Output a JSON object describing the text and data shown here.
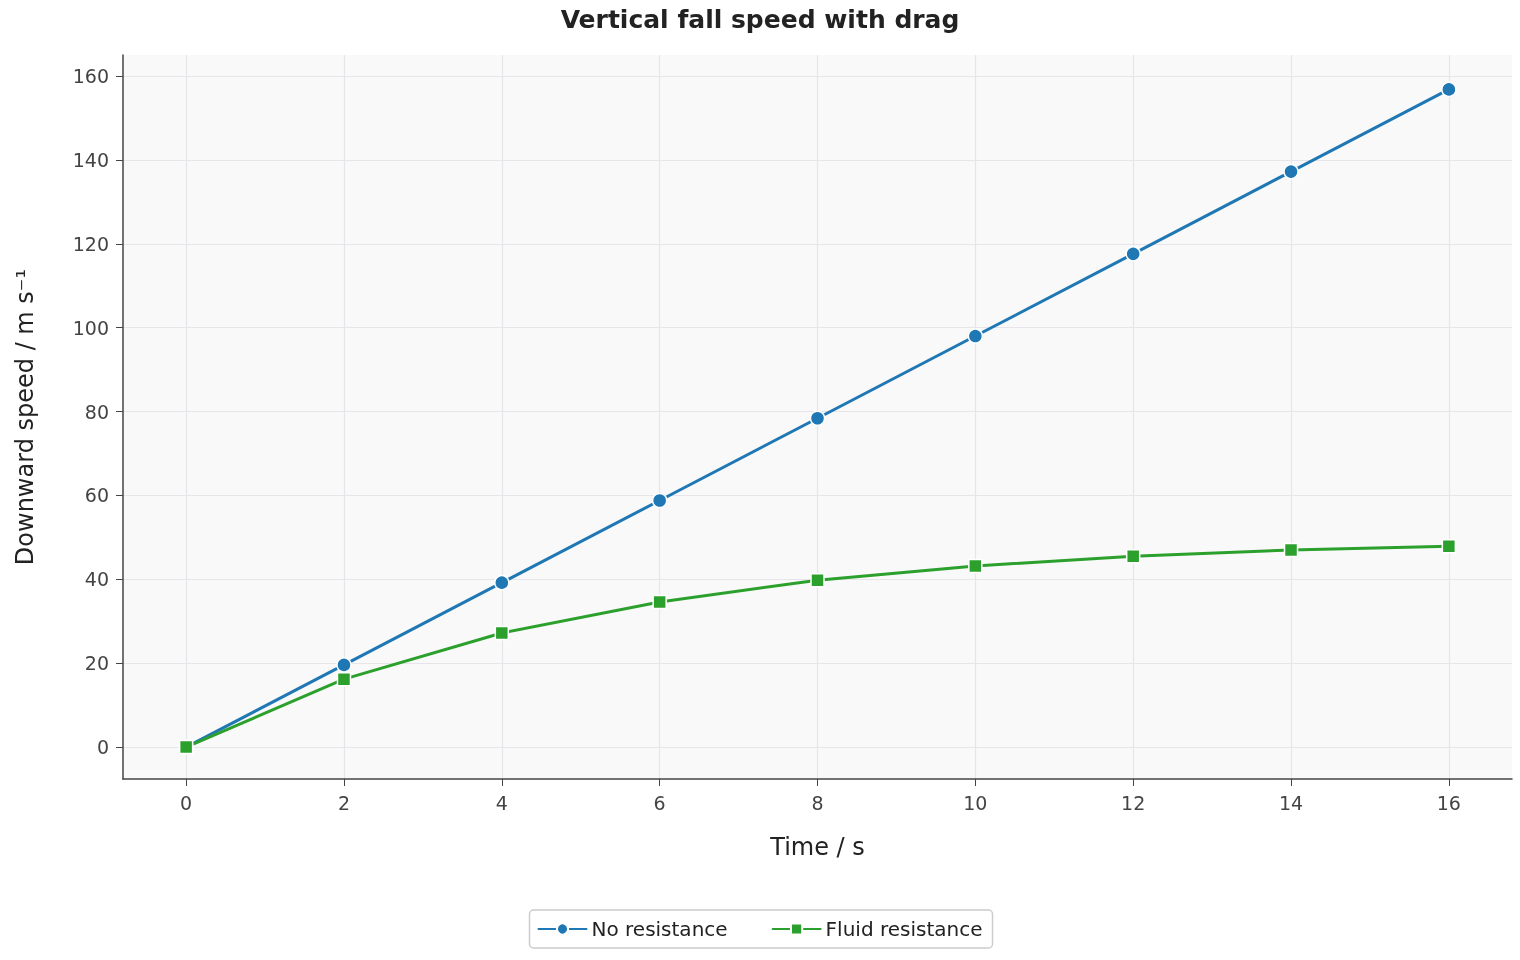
{
  "chart_data": {
    "type": "line",
    "title": "Vertical fall speed with drag",
    "xlabel": "Time / s",
    "ylabel": "Downward speed / m s⁻¹",
    "x": [
      0,
      2,
      4,
      6,
      8,
      10,
      12,
      14,
      16
    ],
    "series": [
      {
        "name": "No resistance",
        "color": "#1f77b4",
        "marker": "circle",
        "values": [
          0,
          19.6,
          39.2,
          58.8,
          78.4,
          98,
          117.6,
          137.2,
          156.8
        ]
      },
      {
        "name": "Fluid resistance",
        "color": "#2ca02c",
        "marker": "square",
        "values": [
          0,
          16.2,
          27.2,
          34.6,
          39.8,
          43.2,
          45.5,
          47,
          47.9
        ]
      }
    ],
    "xlim": [
      -0.8,
      16.8
    ],
    "xticks": [
      0,
      2,
      4,
      6,
      8,
      10,
      12,
      14,
      16
    ],
    "ylim": [
      -7.6,
      165
    ],
    "yticks": [
      0,
      20,
      40,
      60,
      80,
      100,
      120,
      140,
      160
    ],
    "grid": true,
    "legend": "bottom",
    "line_style": "solid"
  }
}
